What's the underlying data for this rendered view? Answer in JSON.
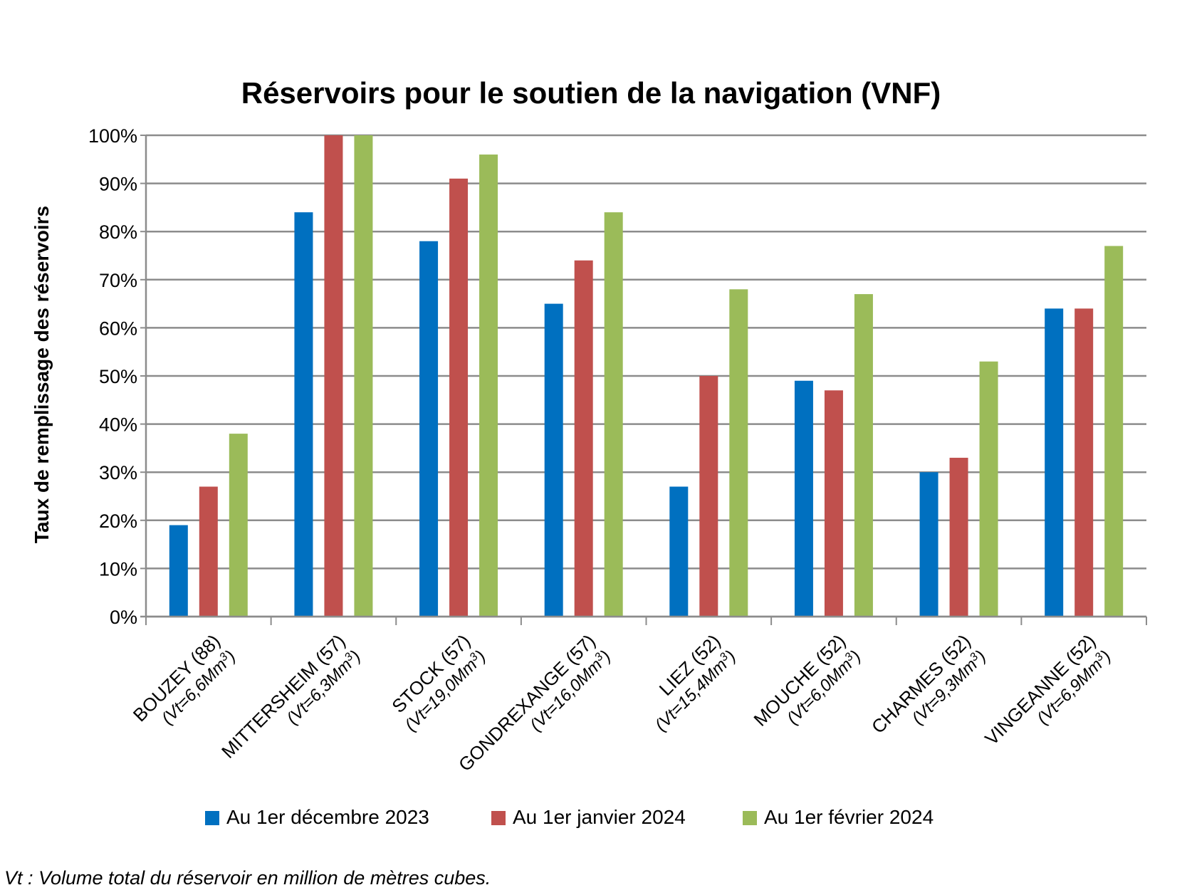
{
  "chart_data": {
    "type": "bar",
    "title": "Réservoirs pour le soutien de la navigation (VNF)",
    "ylabel": "Taux de remplissage des réservoirs",
    "xlabel": "",
    "ylim": [
      0,
      100
    ],
    "y_ticks": [
      "0%",
      "10%",
      "20%",
      "30%",
      "40%",
      "50%",
      "60%",
      "70%",
      "80%",
      "90%",
      "100%"
    ],
    "grid": true,
    "legend_position": "bottom",
    "categories": [
      {
        "name": "BOUZEY (88)",
        "sub": "(Vt=6,6Mm",
        "sup": "3",
        "close": ")"
      },
      {
        "name": "MITTERSHEIM (57)",
        "sub": "(Vt=6,3Mm",
        "sup": "3",
        "close": ")"
      },
      {
        "name": "STOCK (57)",
        "sub": "(Vt=19,0Mm",
        "sup": "3",
        "close": ")"
      },
      {
        "name": "GONDREXANGE (57)",
        "sub": "(Vt=16,0Mm",
        "sup": "3",
        "close": ")"
      },
      {
        "name": "LIEZ (52)",
        "sub": "(Vt=15,4Mm",
        "sup": "3",
        "close": ")"
      },
      {
        "name": "MOUCHE (52)",
        "sub": "(Vt=6,0Mm",
        "sup": "3",
        "close": ")"
      },
      {
        "name": "CHARMES (52)",
        "sub": "(Vt=9,3Mm",
        "sup": "3",
        "close": ")"
      },
      {
        "name": "VINGEANNE (52)",
        "sub": "(Vt=6,9Mm",
        "sup": "3",
        "close": ")"
      }
    ],
    "series": [
      {
        "name": "Au 1er décembre 2023",
        "color": "#0070C0",
        "values": [
          19,
          84,
          78,
          65,
          27,
          49,
          30,
          64
        ]
      },
      {
        "name": "Au 1er janvier 2024",
        "color": "#C0504D",
        "values": [
          27,
          100,
          91,
          74,
          50,
          47,
          33,
          64
        ]
      },
      {
        "name": "Au 1er février 2024",
        "color": "#9BBB59",
        "values": [
          38,
          100,
          96,
          84,
          68,
          67,
          53,
          77
        ]
      }
    ]
  },
  "footnote": "Vt : Volume total du réservoir en million de mètres cubes."
}
